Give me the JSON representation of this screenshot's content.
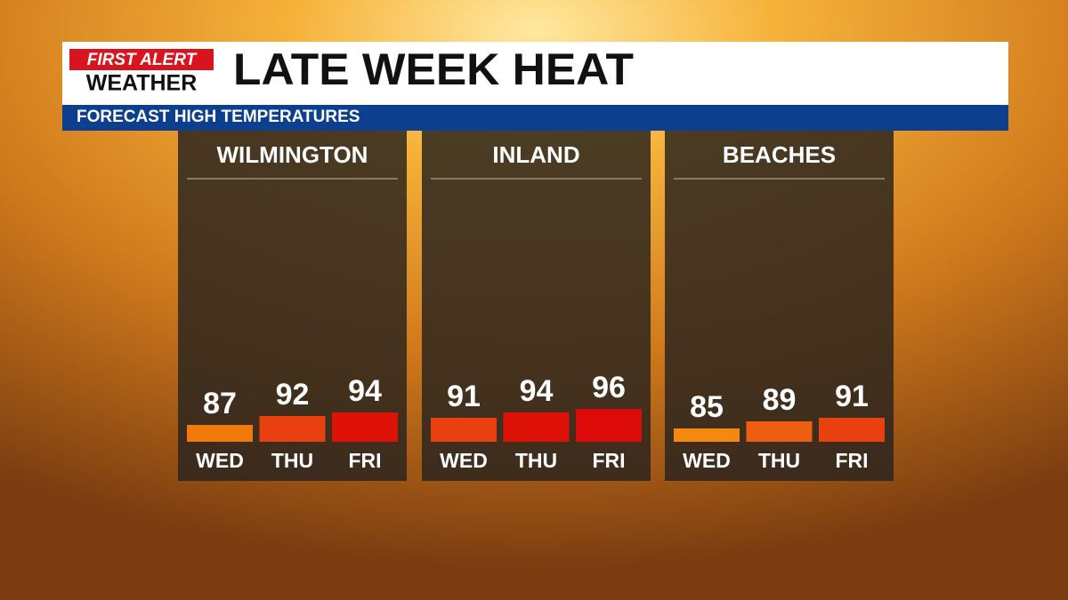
{
  "header": {
    "logo_top": "FIRST ALERT",
    "logo_bottom": "WEATHER",
    "title": "LATE WEEK HEAT",
    "subtitle": "FORECAST HIGH TEMPERATURES"
  },
  "chart_data": [
    {
      "type": "bar",
      "title": "WILMINGTON",
      "categories": [
        "WED",
        "THU",
        "FRI"
      ],
      "values": [
        87,
        92,
        94
      ],
      "colors": [
        "#f27a0c",
        "#e8400f",
        "#df1208"
      ],
      "ylim": [
        77.5,
        220
      ]
    },
    {
      "type": "bar",
      "title": "INLAND",
      "categories": [
        "WED",
        "THU",
        "FRI"
      ],
      "values": [
        91,
        94,
        96
      ],
      "colors": [
        "#e8400f",
        "#df1208",
        "#dc0a08"
      ],
      "ylim": [
        77.5,
        220
      ]
    },
    {
      "type": "bar",
      "title": "BEACHES",
      "categories": [
        "WED",
        "THU",
        "FRI"
      ],
      "values": [
        85,
        89,
        91
      ],
      "colors": [
        "#f5880f",
        "#ee5e10",
        "#e8400f"
      ],
      "ylim": [
        77.5,
        220
      ]
    }
  ]
}
